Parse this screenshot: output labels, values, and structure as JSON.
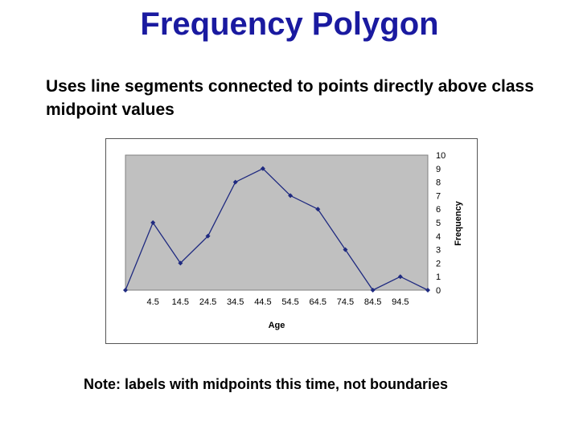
{
  "slide": {
    "title": "Frequency Polygon",
    "body": "Uses line segments connected to points directly above class midpoint values",
    "note": "Note:  labels with midpoints this time, not boundaries"
  },
  "chart_data": {
    "type": "line",
    "x_positions": 12,
    "tick_labels": [
      "",
      "4.5",
      "14.5",
      "24.5",
      "34.5",
      "44.5",
      "54.5",
      "64.5",
      "74.5",
      "84.5",
      "94.5",
      ""
    ],
    "values": [
      0,
      5,
      2,
      4,
      8,
      9,
      7,
      6,
      3,
      0,
      1,
      0
    ],
    "xlabel": "Age",
    "ylabel": "Frequency",
    "ylim": [
      0,
      10
    ],
    "yticks": [
      0,
      1,
      2,
      3,
      4,
      5,
      6,
      7,
      8,
      9,
      10
    ],
    "y_axis_side": "right",
    "grid": false,
    "legend": "none",
    "colors": {
      "plot_bg": "#c0c0c0",
      "line": "#1f2a80",
      "marker": "#1f2a80"
    }
  }
}
